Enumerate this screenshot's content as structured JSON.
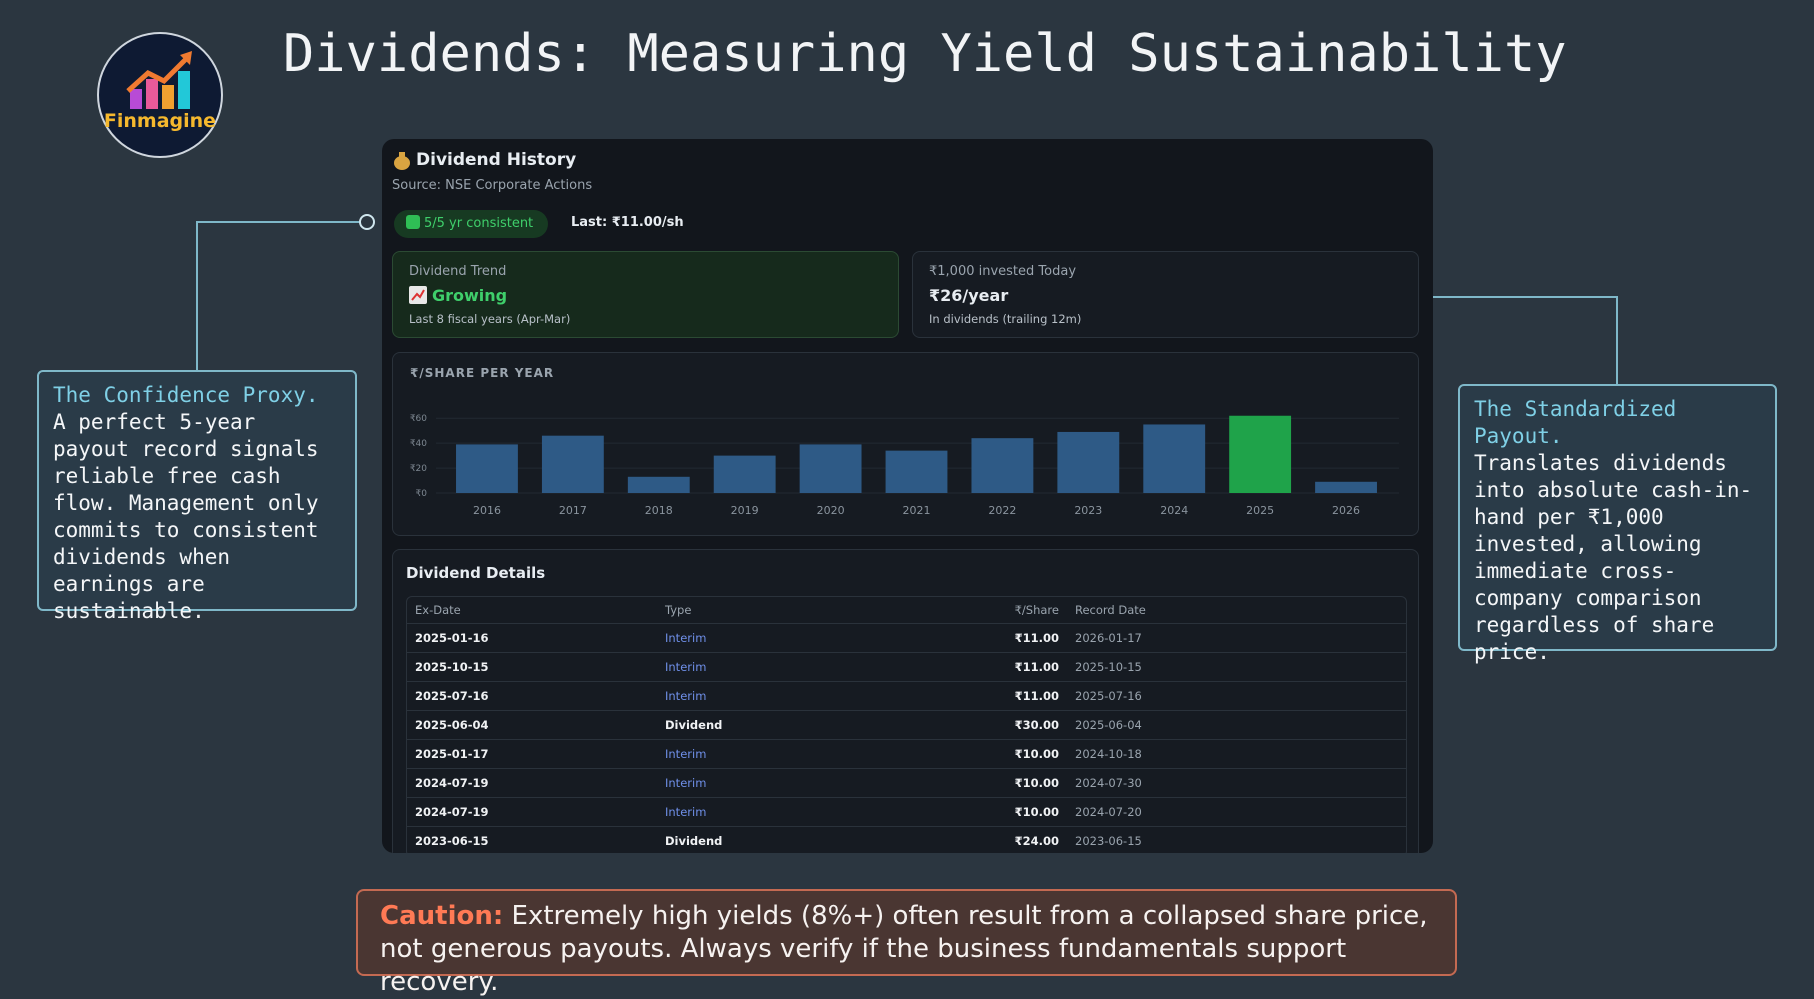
{
  "header": {
    "title": "Dividends: Measuring Yield Sustainability",
    "logo_text": "Finmagine"
  },
  "card": {
    "title": "Dividend History",
    "source": "Source: NSE Corporate Actions",
    "badge": "5/5 yr consistent",
    "last": "Last: ₹11.00/sh",
    "stats": [
      {
        "label": "Dividend Trend",
        "value": "Growing",
        "note": "Last 8 fiscal years (Apr-Mar)"
      },
      {
        "label": "₹1,000 invested Today",
        "value": "₹26/year",
        "note": "In dividends (trailing 12m)"
      }
    ],
    "details_title": "Dividend Details",
    "table": {
      "columns": [
        "Ex-Date",
        "Type",
        "₹/Share",
        "Record Date"
      ],
      "rows": [
        [
          "2025-01-16",
          "Interim",
          "₹11.00",
          "2026-01-17"
        ],
        [
          "2025-10-15",
          "Interim",
          "₹11.00",
          "2025-10-15"
        ],
        [
          "2025-07-16",
          "Interim",
          "₹11.00",
          "2025-07-16"
        ],
        [
          "2025-06-04",
          "Dividend",
          "₹30.00",
          "2025-06-04"
        ],
        [
          "2025-01-17",
          "Interim",
          "₹10.00",
          "2024-10-18"
        ],
        [
          "2024-07-19",
          "Interim",
          "₹10.00",
          "2024-07-30"
        ],
        [
          "2024-07-19",
          "Interim",
          "₹10.00",
          "2024-07-20"
        ],
        [
          "2023-06-15",
          "Dividend",
          "₹24.00",
          "2023-06-15"
        ]
      ]
    }
  },
  "chart_data": {
    "type": "bar",
    "title": "₹/SHARE PER YEAR",
    "categories": [
      "2016",
      "2017",
      "2018",
      "2019",
      "2020",
      "2021",
      "2022",
      "2023",
      "2024",
      "2025",
      "2026"
    ],
    "values": [
      39,
      46,
      13,
      30,
      39,
      34,
      44,
      49,
      55,
      62,
      9
    ],
    "colors": [
      "#2e5a86",
      "#2e5a86",
      "#2e5a86",
      "#2e5a86",
      "#2e5a86",
      "#2e5a86",
      "#2e5a86",
      "#2e5a86",
      "#2e5a86",
      "#1fa34a",
      "#2e5a86"
    ],
    "ylim": [
      0,
      65
    ],
    "yticks": [
      {
        "value": 0,
        "label": "₹0"
      },
      {
        "value": 20,
        "label": "₹20"
      },
      {
        "value": 40,
        "label": "₹40"
      },
      {
        "value": 60,
        "label": "₹60"
      }
    ],
    "grid": true
  },
  "callouts": [
    {
      "title": "The Confidence Proxy.",
      "body": "A perfect 5-year payout record signals reliable free cash flow. Management only commits to consistent dividends when earnings are sustainable."
    },
    {
      "title": "The Standardized Payout.",
      "body": "Translates dividends into absolute cash-in-hand per ₹1,000 invested, allowing immediate cross-company comparison regardless of share price."
    }
  ],
  "caution": {
    "label": "Caution:",
    "text": "Extremely high yields (8%+) often result from a collapsed share price, not generous payouts. Always verify if the business fundamentals support recovery."
  }
}
